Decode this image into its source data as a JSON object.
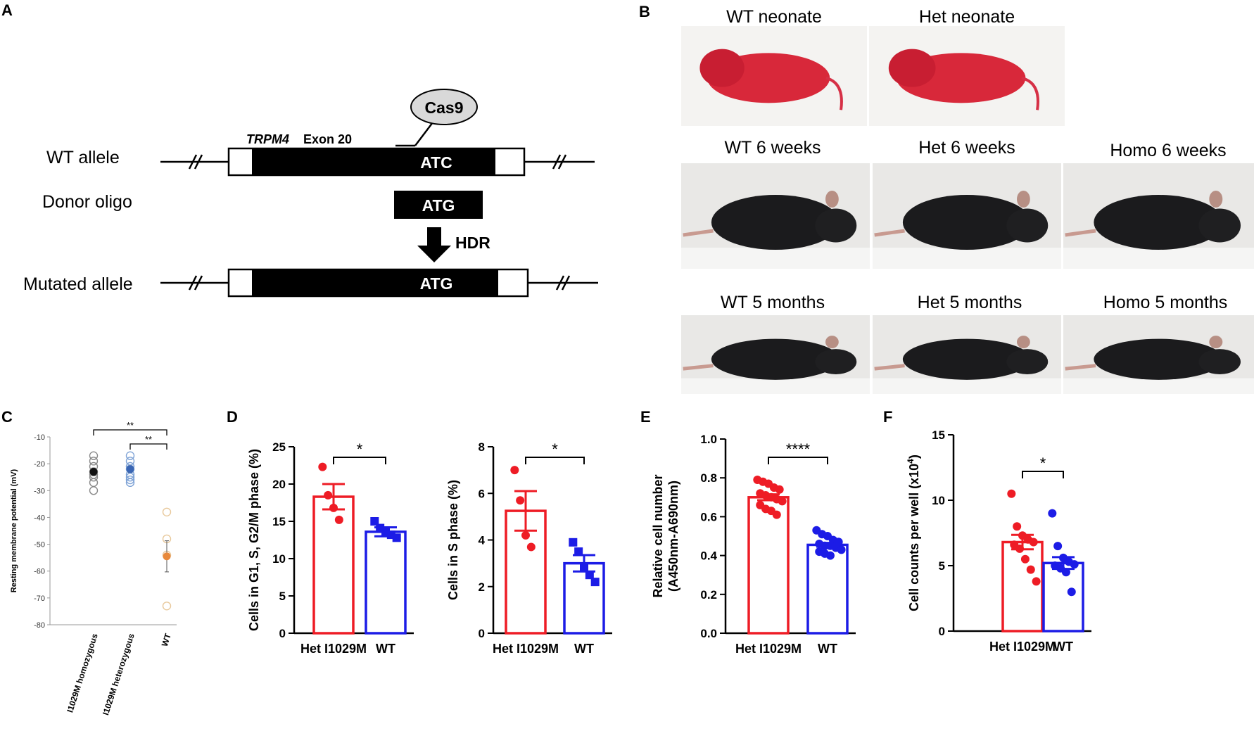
{
  "panel_labels": {
    "a": "A",
    "b": "B",
    "c": "C",
    "d": "D",
    "e": "E",
    "f": "F"
  },
  "panel_a": {
    "gene": "TRPM4",
    "exon": "Exon 20",
    "cas9": "Cas9",
    "wt_label": "WT allele",
    "donor_label": "Donor oligo",
    "mut_label": "Mutated allele",
    "codon_wt": "ATC",
    "codon_donor": "ATG",
    "codon_mut": "ATG",
    "hdr": "HDR"
  },
  "panel_b": {
    "photos": [
      {
        "label": "WT neonate",
        "kind": "neonate"
      },
      {
        "label": "Het neonate",
        "kind": "neonate"
      },
      {
        "label": "WT 6 weeks",
        "kind": "mouse"
      },
      {
        "label": "Het 6 weeks",
        "kind": "mouse"
      },
      {
        "label": "Homo 6 weeks",
        "kind": "mouse"
      },
      {
        "label": "WT 5 months",
        "kind": "mouse"
      },
      {
        "label": "Het 5 months",
        "kind": "mouse"
      },
      {
        "label": "Homo 5 months",
        "kind": "mouse"
      }
    ]
  },
  "chart_data": [
    {
      "panel": "C",
      "type": "scatter",
      "ylabel": "Resting membrane potential (mV)",
      "ylim": [
        -80,
        -10
      ],
      "yticks": [
        -10,
        -20,
        -30,
        -40,
        -50,
        -60,
        -70,
        -80
      ],
      "categories": [
        "I1029M homozygous",
        "I1029M heterozygous",
        "WT"
      ],
      "series": [
        {
          "points": [
            -17,
            -19,
            -21,
            -23,
            -24,
            -25,
            -27,
            -30
          ],
          "mean": -23,
          "sem": 1.4,
          "colors": {
            "open": "#888888",
            "mean": "#111111"
          }
        },
        {
          "points": [
            -17,
            -19,
            -21,
            -22,
            -24,
            -25,
            -26,
            -27
          ],
          "mean": -22,
          "sem": 1.2,
          "colors": {
            "open": "#7fa3d6",
            "mean": "#3a66b4"
          }
        },
        {
          "points": [
            -38,
            -48,
            -54,
            -73
          ],
          "mean": -54.5,
          "sem": 5.8,
          "colors": {
            "open": "#e8c89a",
            "mean": "#e8893c"
          }
        }
      ],
      "significance": [
        {
          "from": 0,
          "to": 2,
          "label": "**"
        },
        {
          "from": 1,
          "to": 2,
          "label": "**"
        }
      ]
    },
    {
      "panel": "D",
      "type": "bar",
      "ylabel": "Cells in G1, S, G2/M phase (%)",
      "ylim": [
        0,
        25
      ],
      "yticks": [
        0,
        5,
        10,
        15,
        20,
        25
      ],
      "categories": [
        "Het I1029M",
        "WT"
      ],
      "values": [
        18.3,
        13.6
      ],
      "sem": [
        1.7,
        0.6
      ],
      "points": [
        [
          22.3,
          18.5,
          16.8,
          15.2
        ],
        [
          15.0,
          14.1,
          13.6,
          13.2,
          12.8
        ]
      ],
      "markers": [
        "circle",
        "square"
      ],
      "colors": [
        "#ee1c25",
        "#1c1ce6"
      ],
      "significance": [
        {
          "from": 0,
          "to": 1,
          "label": "*"
        }
      ]
    },
    {
      "panel": "D2",
      "type": "bar",
      "ylabel": "Cells in S phase (%)",
      "ylim": [
        0,
        8
      ],
      "yticks": [
        0,
        2,
        4,
        6,
        8
      ],
      "categories": [
        "Het I1029M",
        "WT"
      ],
      "values": [
        5.25,
        3.0
      ],
      "sem": [
        0.85,
        0.35
      ],
      "points": [
        [
          7.0,
          5.7,
          4.2,
          3.7
        ],
        [
          3.9,
          3.5,
          2.8,
          2.5,
          2.2
        ]
      ],
      "markers": [
        "circle",
        "square"
      ],
      "colors": [
        "#ee1c25",
        "#1c1ce6"
      ],
      "significance": [
        {
          "from": 0,
          "to": 1,
          "label": "*"
        }
      ]
    },
    {
      "panel": "E",
      "type": "bar",
      "ylabel": "Relative cell number (A450nm-A690nm)",
      "ylim": [
        0,
        1.0
      ],
      "yticks": [
        0.0,
        0.2,
        0.4,
        0.6,
        0.8,
        1.0
      ],
      "categories": [
        "Het I1029M",
        "WT"
      ],
      "values": [
        0.7,
        0.455
      ],
      "sem": [
        0.015,
        0.01
      ],
      "points": [
        [
          0.79,
          0.78,
          0.77,
          0.75,
          0.74,
          0.72,
          0.71,
          0.7,
          0.69,
          0.68,
          0.66,
          0.64,
          0.63,
          0.61
        ],
        [
          0.53,
          0.51,
          0.5,
          0.48,
          0.47,
          0.46,
          0.45,
          0.45,
          0.44,
          0.43,
          0.42,
          0.41,
          0.4
        ]
      ],
      "markers": [
        "circle",
        "circle"
      ],
      "colors": [
        "#ee1c25",
        "#1c1ce6"
      ],
      "significance": [
        {
          "from": 0,
          "to": 1,
          "label": "****"
        }
      ]
    },
    {
      "panel": "F",
      "type": "bar",
      "ylabel": "Cell counts per well (x10",
      "ylabel_sup": "4",
      "ylabel_end": ")",
      "ylim": [
        0,
        15
      ],
      "yticks": [
        0,
        5,
        10,
        15
      ],
      "categories": [
        "Het I1029M",
        "WT"
      ],
      "values": [
        6.8,
        5.2
      ],
      "sem": [
        0.55,
        0.45
      ],
      "points": [
        [
          10.5,
          8.0,
          7.3,
          7.0,
          6.8,
          6.6,
          6.3,
          5.5,
          4.7,
          3.8
        ],
        [
          9.0,
          6.5,
          5.6,
          5.3,
          5.1,
          5.0,
          4.8,
          4.5,
          3.0
        ]
      ],
      "markers": [
        "circle",
        "circle"
      ],
      "colors": [
        "#ee1c25",
        "#1c1ce6"
      ],
      "significance": [
        {
          "from": 0,
          "to": 1,
          "label": "*"
        }
      ]
    }
  ]
}
